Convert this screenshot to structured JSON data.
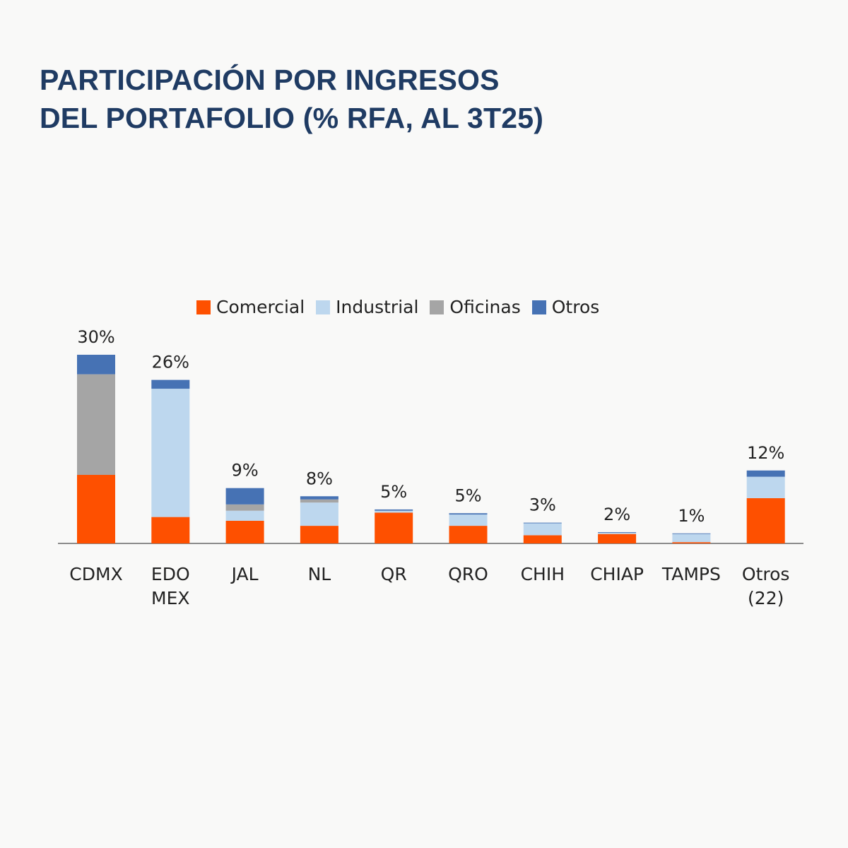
{
  "title": {
    "line1": "PARTICIPACIÓN POR INGRESOS",
    "line2": "DEL PORTAFOLIO (% RFA, AL 3T25)"
  },
  "colors": {
    "comercial": "#fe5000",
    "industrial": "#bdd7ee",
    "oficinas": "#a5a5a5",
    "otros": "#4672b4",
    "title": "#1f3b63"
  },
  "legend": [
    {
      "label": "Comercial",
      "color": "#fe5000"
    },
    {
      "label": "Industrial",
      "color": "#bdd7ee"
    },
    {
      "label": "Oficinas",
      "color": "#a5a5a5"
    },
    {
      "label": "Otros",
      "color": "#4672b4"
    }
  ],
  "chart_data": {
    "type": "bar",
    "stacked": true,
    "title": "PARTICIPACIÓN POR INGRESOS DEL PORTAFOLIO (% RFA, AL 3T25)",
    "categories": [
      [
        "CDMX"
      ],
      [
        "EDO",
        "MEX"
      ],
      [
        "JAL"
      ],
      [
        "NL"
      ],
      [
        "QR"
      ],
      [
        "QRO"
      ],
      [
        "CHIH"
      ],
      [
        "CHIAP"
      ],
      [
        "TAMPS"
      ],
      [
        "Otros",
        "(22)"
      ]
    ],
    "totals_labels": [
      "30%",
      "26%",
      "9%",
      "8%",
      "5%",
      "5%",
      "3%",
      "2%",
      "1%",
      "12%"
    ],
    "series": [
      {
        "name": "Comercial",
        "values": [
          10.9,
          4.2,
          3.6,
          2.8,
          4.9,
          2.8,
          1.3,
          1.5,
          0.2,
          7.2
        ]
      },
      {
        "name": "Industrial",
        "values": [
          0.0,
          20.4,
          1.6,
          3.7,
          0.3,
          1.8,
          1.9,
          0.2,
          1.3,
          3.4
        ]
      },
      {
        "name": "Oficinas",
        "values": [
          16.0,
          0.0,
          1.0,
          0.5,
          0.0,
          0.0,
          0.0,
          0.0,
          0.0,
          0.0
        ]
      },
      {
        "name": "Otros",
        "values": [
          3.1,
          1.4,
          2.6,
          0.5,
          0.2,
          0.2,
          0.1,
          0.1,
          0.1,
          1.0
        ]
      }
    ],
    "ylim": [
      0,
      30
    ],
    "xlabel": "",
    "ylabel": "",
    "legend_position": "top"
  }
}
